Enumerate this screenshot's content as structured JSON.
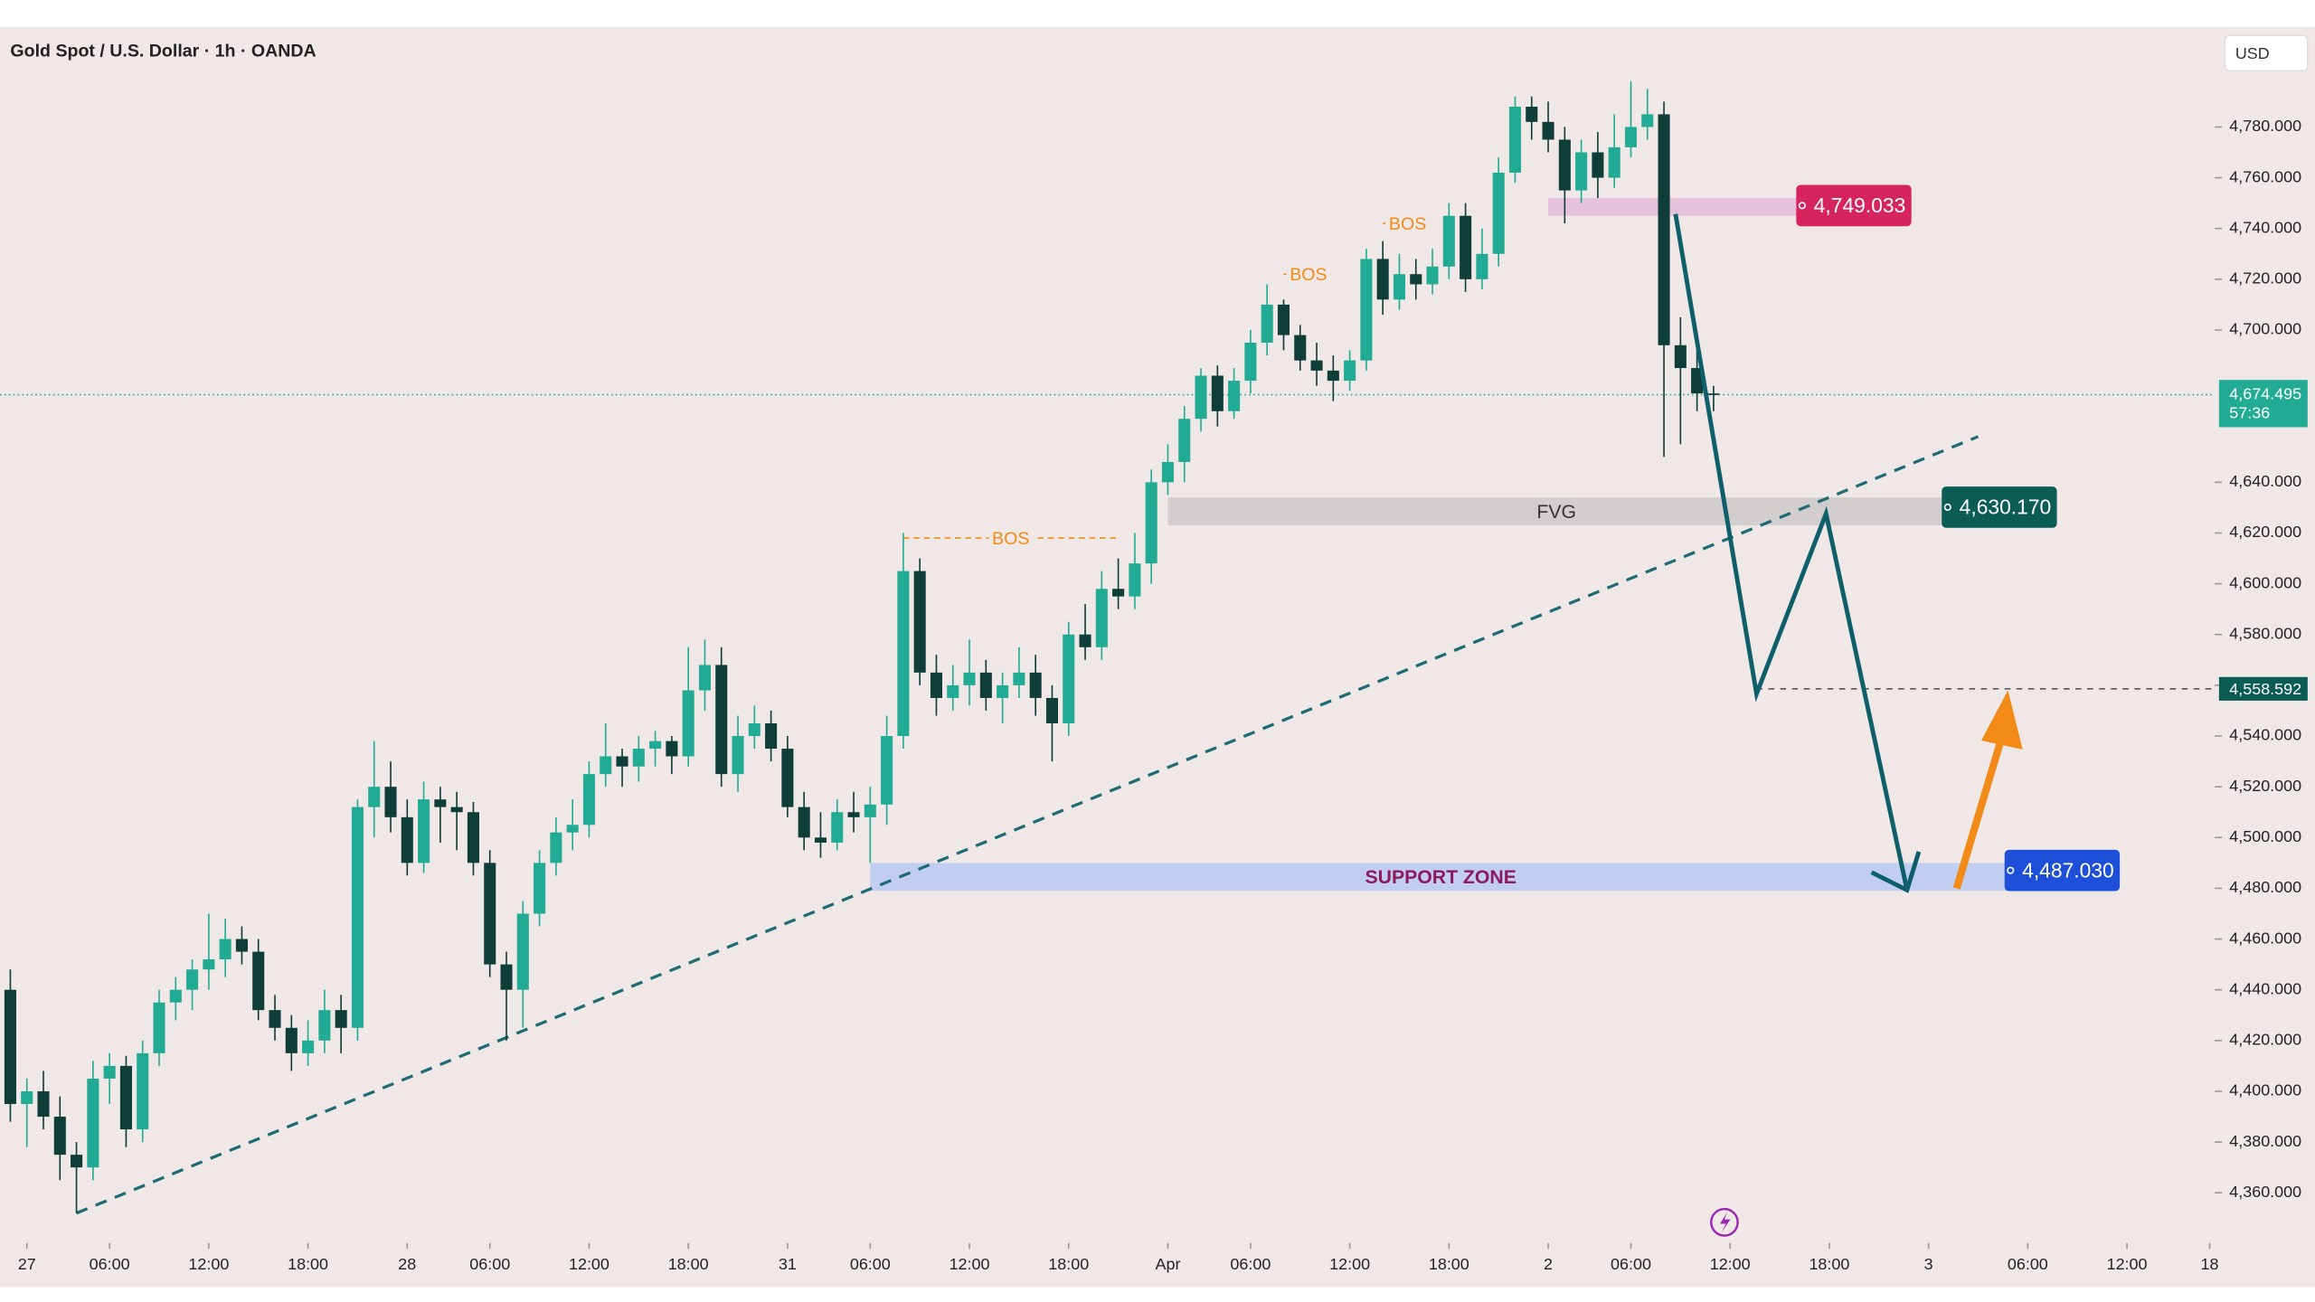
{
  "chart_data": {
    "type": "candlestick",
    "title": "Gold Spot / U.S. Dollar · 1h · OANDA",
    "currency": "USD",
    "bull_color": "#22ab94",
    "bear_color": "#0f3d38",
    "candles": [
      [
        4440,
        4448,
        4388,
        4395
      ],
      [
        4395,
        4405,
        4378,
        4400
      ],
      [
        4400,
        4408,
        4385,
        4390
      ],
      [
        4390,
        4398,
        4365,
        4375
      ],
      [
        4375,
        4380,
        4352,
        4370
      ],
      [
        4370,
        4412,
        4365,
        4405
      ],
      [
        4405,
        4415,
        4395,
        4410
      ],
      [
        4410,
        4414,
        4378,
        4385
      ],
      [
        4385,
        4420,
        4380,
        4415
      ],
      [
        4415,
        4440,
        4410,
        4435
      ],
      [
        4435,
        4445,
        4428,
        4440
      ],
      [
        4440,
        4452,
        4432,
        4448
      ],
      [
        4448,
        4470,
        4440,
        4452
      ],
      [
        4452,
        4468,
        4445,
        4460
      ],
      [
        4460,
        4465,
        4450,
        4455
      ],
      [
        4455,
        4460,
        4428,
        4432
      ],
      [
        4432,
        4438,
        4420,
        4425
      ],
      [
        4425,
        4430,
        4408,
        4415
      ],
      [
        4415,
        4428,
        4410,
        4420
      ],
      [
        4420,
        4440,
        4415,
        4432
      ],
      [
        4432,
        4438,
        4415,
        4425
      ],
      [
        4425,
        4515,
        4420,
        4512
      ],
      [
        4512,
        4538,
        4500,
        4520
      ],
      [
        4520,
        4530,
        4502,
        4508
      ],
      [
        4508,
        4515,
        4485,
        4490
      ],
      [
        4490,
        4522,
        4486,
        4515
      ],
      [
        4515,
        4520,
        4498,
        4512
      ],
      [
        4512,
        4518,
        4495,
        4510
      ],
      [
        4510,
        4514,
        4485,
        4490
      ],
      [
        4490,
        4495,
        4445,
        4450
      ],
      [
        4450,
        4455,
        4420,
        4440
      ],
      [
        4440,
        4475,
        4425,
        4470
      ],
      [
        4470,
        4495,
        4465,
        4490
      ],
      [
        4490,
        4508,
        4485,
        4502
      ],
      [
        4502,
        4515,
        4495,
        4505
      ],
      [
        4505,
        4530,
        4500,
        4525
      ],
      [
        4525,
        4545,
        4520,
        4532
      ],
      [
        4532,
        4535,
        4520,
        4528
      ],
      [
        4528,
        4540,
        4522,
        4535
      ],
      [
        4535,
        4542,
        4528,
        4538
      ],
      [
        4538,
        4540,
        4525,
        4532
      ],
      [
        4532,
        4575,
        4528,
        4558
      ],
      [
        4558,
        4578,
        4550,
        4568
      ],
      [
        4568,
        4575,
        4520,
        4525
      ],
      [
        4525,
        4548,
        4518,
        4540
      ],
      [
        4540,
        4552,
        4535,
        4545
      ],
      [
        4545,
        4550,
        4530,
        4535
      ],
      [
        4535,
        4540,
        4508,
        4512
      ],
      [
        4512,
        4518,
        4495,
        4500
      ],
      [
        4500,
        4510,
        4492,
        4498
      ],
      [
        4498,
        4515,
        4495,
        4510
      ],
      [
        4510,
        4518,
        4502,
        4508
      ],
      [
        4508,
        4520,
        4490,
        4513
      ],
      [
        4513,
        4548,
        4505,
        4540
      ],
      [
        4540,
        4620,
        4535,
        4605
      ],
      [
        4605,
        4610,
        4560,
        4565
      ],
      [
        4565,
        4572,
        4548,
        4555
      ],
      [
        4555,
        4568,
        4550,
        4560
      ],
      [
        4560,
        4578,
        4552,
        4565
      ],
      [
        4565,
        4570,
        4550,
        4555
      ],
      [
        4555,
        4565,
        4545,
        4560
      ],
      [
        4560,
        4575,
        4555,
        4565
      ],
      [
        4565,
        4572,
        4548,
        4555
      ],
      [
        4555,
        4560,
        4530,
        4545
      ],
      [
        4545,
        4585,
        4540,
        4580
      ],
      [
        4580,
        4592,
        4570,
        4575
      ],
      [
        4575,
        4605,
        4570,
        4598
      ],
      [
        4598,
        4610,
        4590,
        4595
      ],
      [
        4595,
        4620,
        4590,
        4608
      ],
      [
        4608,
        4645,
        4600,
        4640
      ],
      [
        4640,
        4655,
        4635,
        4648
      ],
      [
        4648,
        4670,
        4640,
        4665
      ],
      [
        4665,
        4685,
        4660,
        4682
      ],
      [
        4682,
        4686,
        4662,
        4668
      ],
      [
        4668,
        4685,
        4665,
        4680
      ],
      [
        4680,
        4700,
        4675,
        4695
      ],
      [
        4695,
        4718,
        4690,
        4710
      ],
      [
        4710,
        4712,
        4692,
        4698
      ],
      [
        4698,
        4702,
        4684,
        4688
      ],
      [
        4688,
        4695,
        4678,
        4684
      ],
      [
        4684,
        4690,
        4672,
        4680
      ],
      [
        4680,
        4692,
        4676,
        4688
      ],
      [
        4688,
        4732,
        4684,
        4728
      ],
      [
        4728,
        4735,
        4706,
        4712
      ],
      [
        4712,
        4730,
        4708,
        4722
      ],
      [
        4722,
        4728,
        4712,
        4718
      ],
      [
        4718,
        4732,
        4714,
        4725
      ],
      [
        4725,
        4750,
        4720,
        4745
      ],
      [
        4745,
        4750,
        4715,
        4720
      ],
      [
        4720,
        4740,
        4716,
        4730
      ],
      [
        4730,
        4768,
        4725,
        4762
      ],
      [
        4762,
        4792,
        4758,
        4788
      ],
      [
        4788,
        4792,
        4775,
        4782
      ],
      [
        4782,
        4790,
        4770,
        4775
      ],
      [
        4775,
        4780,
        4742,
        4755
      ],
      [
        4755,
        4775,
        4750,
        4770
      ],
      [
        4770,
        4778,
        4752,
        4760
      ],
      [
        4760,
        4785,
        4756,
        4772
      ],
      [
        4772,
        4798,
        4768,
        4780
      ],
      [
        4780,
        4795,
        4775,
        4785
      ],
      [
        4785,
        4790,
        4650,
        4694
      ],
      [
        4694,
        4705,
        4655,
        4685
      ],
      [
        4685,
        4698,
        4668,
        4675
      ],
      [
        4675,
        4678,
        4668,
        4674.495
      ]
    ],
    "xlim": [
      -0.625,
      133.3
    ],
    "xticks": [
      {
        "value": 1,
        "label": "27"
      },
      {
        "value": 6,
        "label": "06:00"
      },
      {
        "value": 12,
        "label": "12:00"
      },
      {
        "value": 18,
        "label": "18:00"
      },
      {
        "value": 24,
        "label": "28"
      },
      {
        "value": 29,
        "label": "06:00"
      },
      {
        "value": 35,
        "label": "12:00"
      },
      {
        "value": 41,
        "label": "18:00"
      },
      {
        "value": 47,
        "label": "31"
      },
      {
        "value": 52,
        "label": "06:00"
      },
      {
        "value": 58,
        "label": "12:00"
      },
      {
        "value": 64,
        "label": "18:00"
      },
      {
        "value": 70,
        "label": "Apr"
      },
      {
        "value": 75,
        "label": "06:00"
      },
      {
        "value": 81,
        "label": "12:00"
      },
      {
        "value": 87,
        "label": "18:00"
      },
      {
        "value": 93,
        "label": "2"
      },
      {
        "value": 98,
        "label": "06:00"
      },
      {
        "value": 104,
        "label": "12:00"
      },
      {
        "value": 110,
        "label": "18:00"
      },
      {
        "value": 116,
        "label": "3"
      },
      {
        "value": 122,
        "label": "06:00"
      },
      {
        "value": 128,
        "label": "12:00"
      },
      {
        "value": 133,
        "label": "18"
      }
    ],
    "ylim": [
      4341.4,
      4818.4
    ],
    "yticks": [
      {
        "value": 4360,
        "label": "4,360.000"
      },
      {
        "value": 4380,
        "label": "4,380.000"
      },
      {
        "value": 4400,
        "label": "4,400.000"
      },
      {
        "value": 4420,
        "label": "4,420.000"
      },
      {
        "value": 4440,
        "label": "4,440.000"
      },
      {
        "value": 4460,
        "label": "4,460.000"
      },
      {
        "value": 4480,
        "label": "4,480.000"
      },
      {
        "value": 4500,
        "label": "4,500.000"
      },
      {
        "value": 4520,
        "label": "4,520.000"
      },
      {
        "value": 4540,
        "label": "4,540.000"
      },
      {
        "value": 4560,
        "label": "4,560.000"
      },
      {
        "value": 4580,
        "label": "4,580.000"
      },
      {
        "value": 4600,
        "label": "4,600.000"
      },
      {
        "value": 4620,
        "label": "4,620.000"
      },
      {
        "value": 4640,
        "label": "4,640.000"
      },
      {
        "value": 4700,
        "label": "4,700.000"
      },
      {
        "value": 4720,
        "label": "4,720.000"
      },
      {
        "value": 4740,
        "label": "4,740.000"
      },
      {
        "value": 4760,
        "label": "4,760.000"
      },
      {
        "value": 4780,
        "label": "4,780.000"
      }
    ],
    "zones": [
      {
        "x": [
          93,
          108
        ],
        "y": [
          4745,
          4752
        ],
        "color": "#e3bcd9"
      },
      {
        "name": "FVG",
        "x": [
          70,
          117
        ],
        "y": [
          4623,
          4634
        ],
        "color": "#cfcbcb",
        "text_color": "#333333"
      },
      {
        "name": "SUPPORT ZONE",
        "x": [
          52,
          121
        ],
        "y": [
          4479,
          4490
        ],
        "color": "#bccbef",
        "text_color": "#8e1a5c"
      }
    ],
    "price_tags": [
      {
        "value": 4749.033,
        "label": "4,749.033",
        "x": 108,
        "color": "#d6245f"
      },
      {
        "value": 4630.17,
        "label": "4,630.170",
        "x": 116.8,
        "color": "#0b5c55"
      },
      {
        "value": 4487.03,
        "label": "4,487.030",
        "x": 120.6,
        "color": "#1d4fd8"
      }
    ],
    "bos": [
      {
        "label": "BOS",
        "x": [
          54,
          67
        ],
        "y": 4618
      },
      {
        "label": "BOS",
        "x": [
          77,
          80
        ],
        "y": 4722
      },
      {
        "label": "BOS",
        "x": [
          83,
          86
        ],
        "y": 4742
      }
    ],
    "trendline": {
      "x": [
        4,
        119
      ],
      "y": [
        4352,
        4658
      ],
      "color": "#1f6b74"
    },
    "current_price": {
      "value": 4674.495,
      "label": "4,674.495",
      "countdown": "57:36",
      "color": "#22ab94"
    },
    "level_line": {
      "value": 4558.592,
      "label": "4,558.592",
      "x": 105.6,
      "color": "#0b5c55"
    },
    "projection": {
      "x": [
        100.7,
        105.6,
        109.8,
        114.7
      ],
      "y": [
        4745.7,
        4556.6,
        4627.6,
        4479.3
      ],
      "color": "#0f5f6b"
    },
    "rebound_arrow": {
      "x": [
        117.7,
        120.8
      ],
      "y": [
        4480,
        4558
      ],
      "color": "#f28a17"
    }
  }
}
